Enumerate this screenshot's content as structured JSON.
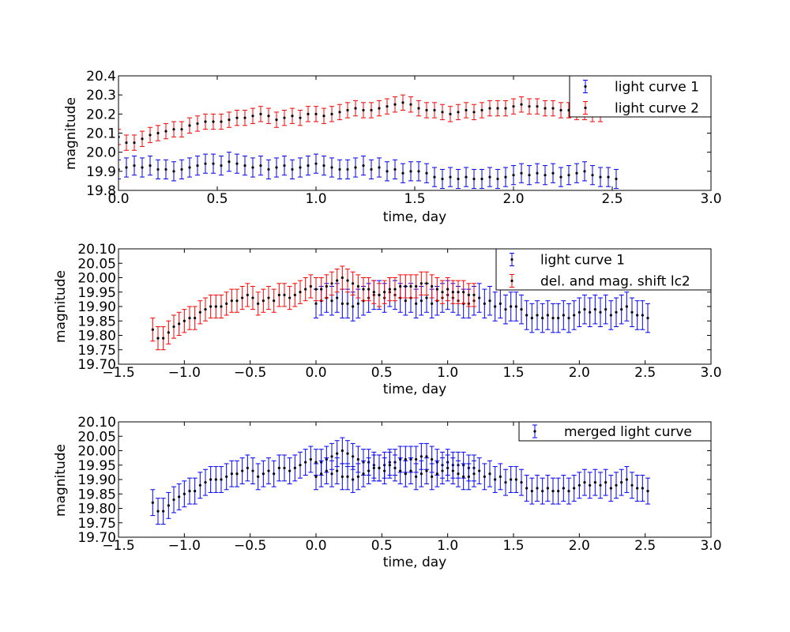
{
  "chart_data": [
    {
      "type": "scatter",
      "xlabel": "time, day",
      "ylabel": "magnitude",
      "xlim": [
        0.0,
        3.0
      ],
      "ylim": [
        19.8,
        20.4
      ],
      "xticks": [
        "0.0",
        "0.5",
        "1.0",
        "1.5",
        "2.0",
        "2.5",
        "3.0"
      ],
      "yticks": [
        "19.8",
        "19.9",
        "20.0",
        "20.1",
        "20.2",
        "20.3",
        "20.4"
      ],
      "legend_position": "top-right",
      "series": [
        {
          "name": "light curve 1",
          "color": "#0000ff",
          "error": 0.05,
          "x": [
            0.0,
            0.04,
            0.08,
            0.12,
            0.16,
            0.2,
            0.24,
            0.28,
            0.32,
            0.36,
            0.4,
            0.44,
            0.48,
            0.52,
            0.56,
            0.6,
            0.64,
            0.68,
            0.72,
            0.76,
            0.8,
            0.84,
            0.88,
            0.92,
            0.96,
            1.0,
            1.04,
            1.08,
            1.12,
            1.16,
            1.2,
            1.24,
            1.28,
            1.32,
            1.36,
            1.4,
            1.44,
            1.48,
            1.52,
            1.56,
            1.6,
            1.64,
            1.68,
            1.72,
            1.76,
            1.8,
            1.84,
            1.88,
            1.92,
            1.96,
            2.0,
            2.04,
            2.08,
            2.12,
            2.16,
            2.2,
            2.24,
            2.28,
            2.32,
            2.36,
            2.4,
            2.44,
            2.48,
            2.52
          ],
          "y": [
            19.91,
            19.92,
            19.93,
            19.92,
            19.93,
            19.91,
            19.91,
            19.9,
            19.91,
            19.92,
            19.93,
            19.94,
            19.94,
            19.93,
            19.95,
            19.94,
            19.93,
            19.92,
            19.93,
            19.91,
            19.92,
            19.93,
            19.91,
            19.92,
            19.93,
            19.94,
            19.93,
            19.92,
            19.91,
            19.91,
            19.92,
            19.93,
            19.91,
            19.92,
            19.9,
            19.91,
            19.89,
            19.9,
            19.9,
            19.89,
            19.87,
            19.86,
            19.87,
            19.86,
            19.87,
            19.86,
            19.86,
            19.87,
            19.86,
            19.87,
            19.88,
            19.89,
            19.88,
            19.89,
            19.88,
            19.89,
            19.87,
            19.88,
            19.89,
            19.9,
            19.88,
            19.87,
            19.87,
            19.86
          ]
        },
        {
          "name": "light curve 2",
          "color": "#ff0000",
          "error": 0.04,
          "x": [
            0.0,
            0.04,
            0.08,
            0.12,
            0.16,
            0.2,
            0.24,
            0.28,
            0.32,
            0.36,
            0.4,
            0.44,
            0.48,
            0.52,
            0.56,
            0.6,
            0.64,
            0.68,
            0.72,
            0.76,
            0.8,
            0.84,
            0.88,
            0.92,
            0.96,
            1.0,
            1.04,
            1.08,
            1.12,
            1.16,
            1.2,
            1.24,
            1.28,
            1.32,
            1.36,
            1.4,
            1.44,
            1.48,
            1.52,
            1.56,
            1.6,
            1.64,
            1.68,
            1.72,
            1.76,
            1.8,
            1.84,
            1.88,
            1.92,
            1.96,
            2.0,
            2.04,
            2.08,
            2.12,
            2.16,
            2.2,
            2.24,
            2.28,
            2.32,
            2.36,
            2.4,
            2.44
          ],
          "y": [
            20.08,
            20.05,
            20.05,
            20.07,
            20.09,
            20.1,
            20.11,
            20.12,
            20.12,
            20.14,
            20.15,
            20.16,
            20.16,
            20.16,
            20.17,
            20.18,
            20.18,
            20.19,
            20.2,
            20.19,
            20.17,
            20.18,
            20.19,
            20.18,
            20.2,
            20.2,
            20.19,
            20.2,
            20.21,
            20.22,
            20.23,
            20.22,
            20.22,
            20.23,
            20.24,
            20.25,
            20.26,
            20.25,
            20.23,
            20.22,
            20.22,
            20.21,
            20.2,
            20.21,
            20.22,
            20.21,
            20.22,
            20.23,
            20.23,
            20.23,
            20.24,
            20.25,
            20.24,
            20.24,
            20.23,
            20.23,
            20.22,
            20.22,
            20.21,
            20.21,
            20.2,
            20.2
          ]
        }
      ]
    },
    {
      "type": "scatter",
      "xlabel": "time, day",
      "ylabel": "magnitude",
      "xlim": [
        -1.5,
        3.0
      ],
      "ylim": [
        19.7,
        20.1
      ],
      "xticks": [
        "−1.5",
        "−1.0",
        "−0.5",
        "0.0",
        "0.5",
        "1.0",
        "1.5",
        "2.0",
        "2.5",
        "3.0"
      ],
      "yticks": [
        "19.70",
        "19.75",
        "19.80",
        "19.85",
        "19.90",
        "19.95",
        "20.00",
        "20.05",
        "20.10"
      ],
      "legend_position": "top-right",
      "series": [
        {
          "name": "light curve 1",
          "color": "#0000ff",
          "error": 0.05,
          "x": [
            0.0,
            0.04,
            0.08,
            0.12,
            0.16,
            0.2,
            0.24,
            0.28,
            0.32,
            0.36,
            0.4,
            0.44,
            0.48,
            0.52,
            0.56,
            0.6,
            0.64,
            0.68,
            0.72,
            0.76,
            0.8,
            0.84,
            0.88,
            0.92,
            0.96,
            1.0,
            1.04,
            1.08,
            1.12,
            1.16,
            1.2,
            1.24,
            1.28,
            1.32,
            1.36,
            1.4,
            1.44,
            1.48,
            1.52,
            1.56,
            1.6,
            1.64,
            1.68,
            1.72,
            1.76,
            1.8,
            1.84,
            1.88,
            1.92,
            1.96,
            2.0,
            2.04,
            2.08,
            2.12,
            2.16,
            2.2,
            2.24,
            2.28,
            2.32,
            2.36,
            2.4,
            2.44,
            2.48,
            2.52
          ],
          "y": [
            19.91,
            19.92,
            19.93,
            19.92,
            19.93,
            19.91,
            19.91,
            19.9,
            19.91,
            19.92,
            19.93,
            19.94,
            19.94,
            19.93,
            19.95,
            19.94,
            19.93,
            19.92,
            19.93,
            19.91,
            19.92,
            19.93,
            19.91,
            19.92,
            19.93,
            19.94,
            19.93,
            19.92,
            19.91,
            19.91,
            19.92,
            19.93,
            19.91,
            19.92,
            19.9,
            19.91,
            19.89,
            19.9,
            19.9,
            19.89,
            19.87,
            19.86,
            19.87,
            19.86,
            19.87,
            19.86,
            19.86,
            19.87,
            19.86,
            19.87,
            19.88,
            19.89,
            19.88,
            19.89,
            19.88,
            19.89,
            19.87,
            19.88,
            19.89,
            19.9,
            19.88,
            19.87,
            19.87,
            19.86
          ]
        },
        {
          "name": "del. and mag. shift lc2",
          "color": "#ff0000",
          "error": 0.04,
          "x": [
            -1.24,
            -1.2,
            -1.16,
            -1.12,
            -1.08,
            -1.04,
            -1.0,
            -0.96,
            -0.92,
            -0.88,
            -0.84,
            -0.8,
            -0.76,
            -0.72,
            -0.68,
            -0.64,
            -0.6,
            -0.56,
            -0.52,
            -0.48,
            -0.44,
            -0.4,
            -0.36,
            -0.32,
            -0.28,
            -0.24,
            -0.2,
            -0.16,
            -0.12,
            -0.08,
            -0.04,
            0.0,
            0.04,
            0.08,
            0.12,
            0.16,
            0.2,
            0.24,
            0.28,
            0.32,
            0.36,
            0.4,
            0.44,
            0.48,
            0.52,
            0.56,
            0.6,
            0.64,
            0.68,
            0.72,
            0.76,
            0.8,
            0.84,
            0.88,
            0.92,
            0.96,
            1.0,
            1.04,
            1.08,
            1.12,
            1.16,
            1.2
          ],
          "y": [
            19.82,
            19.79,
            19.79,
            19.81,
            19.83,
            19.84,
            19.85,
            19.86,
            19.86,
            19.88,
            19.89,
            19.9,
            19.9,
            19.9,
            19.91,
            19.92,
            19.92,
            19.93,
            19.94,
            19.93,
            19.91,
            19.92,
            19.93,
            19.92,
            19.94,
            19.94,
            19.93,
            19.94,
            19.95,
            19.96,
            19.97,
            19.96,
            19.96,
            19.97,
            19.98,
            19.99,
            20.0,
            19.99,
            19.98,
            19.97,
            19.96,
            19.96,
            19.95,
            19.94,
            19.95,
            19.96,
            19.96,
            19.97,
            19.97,
            19.97,
            19.97,
            19.98,
            19.98,
            19.97,
            19.96,
            19.95,
            19.96,
            19.95,
            19.95,
            19.95,
            19.94,
            19.94
          ]
        }
      ]
    },
    {
      "type": "scatter",
      "xlabel": "time, day",
      "ylabel": "magnitude",
      "xlim": [
        -1.5,
        3.0
      ],
      "ylim": [
        19.7,
        20.1
      ],
      "xticks": [
        "−1.5",
        "−1.0",
        "−0.5",
        "0.0",
        "0.5",
        "1.0",
        "1.5",
        "2.0",
        "2.5",
        "3.0"
      ],
      "yticks": [
        "19.70",
        "19.75",
        "19.80",
        "19.85",
        "19.90",
        "19.95",
        "20.00",
        "20.05",
        "20.10"
      ],
      "legend_position": "top-right",
      "series": [
        {
          "name": "merged light curve",
          "color": "#0000ff",
          "error": 0.045,
          "x": [
            -1.24,
            -1.2,
            -1.16,
            -1.12,
            -1.08,
            -1.04,
            -1.0,
            -0.96,
            -0.92,
            -0.88,
            -0.84,
            -0.8,
            -0.76,
            -0.72,
            -0.68,
            -0.64,
            -0.6,
            -0.56,
            -0.52,
            -0.48,
            -0.44,
            -0.4,
            -0.36,
            -0.32,
            -0.28,
            -0.24,
            -0.2,
            -0.16,
            -0.12,
            -0.08,
            -0.04,
            0.0,
            0.0,
            0.04,
            0.04,
            0.08,
            0.08,
            0.12,
            0.12,
            0.16,
            0.16,
            0.2,
            0.2,
            0.24,
            0.24,
            0.28,
            0.28,
            0.32,
            0.32,
            0.36,
            0.36,
            0.4,
            0.4,
            0.44,
            0.44,
            0.48,
            0.48,
            0.52,
            0.52,
            0.56,
            0.56,
            0.6,
            0.6,
            0.64,
            0.64,
            0.68,
            0.68,
            0.72,
            0.72,
            0.76,
            0.76,
            0.8,
            0.8,
            0.84,
            0.84,
            0.88,
            0.88,
            0.92,
            0.92,
            0.96,
            0.96,
            1.0,
            1.0,
            1.04,
            1.04,
            1.08,
            1.08,
            1.12,
            1.12,
            1.16,
            1.16,
            1.2,
            1.2,
            1.24,
            1.28,
            1.32,
            1.36,
            1.4,
            1.44,
            1.48,
            1.52,
            1.56,
            1.6,
            1.64,
            1.68,
            1.72,
            1.76,
            1.8,
            1.84,
            1.88,
            1.92,
            1.96,
            2.0,
            2.04,
            2.08,
            2.12,
            2.16,
            2.2,
            2.24,
            2.28,
            2.32,
            2.36,
            2.4,
            2.44,
            2.48,
            2.52
          ],
          "y": [
            19.82,
            19.79,
            19.79,
            19.81,
            19.83,
            19.84,
            19.85,
            19.86,
            19.86,
            19.88,
            19.89,
            19.9,
            19.9,
            19.9,
            19.91,
            19.92,
            19.92,
            19.93,
            19.94,
            19.93,
            19.91,
            19.92,
            19.93,
            19.92,
            19.94,
            19.94,
            19.93,
            19.94,
            19.95,
            19.96,
            19.97,
            19.96,
            19.91,
            19.96,
            19.92,
            19.97,
            19.93,
            19.98,
            19.92,
            19.99,
            19.93,
            20.0,
            19.91,
            19.99,
            19.91,
            19.98,
            19.9,
            19.97,
            19.91,
            19.96,
            19.92,
            19.96,
            19.93,
            19.95,
            19.94,
            19.94,
            19.94,
            19.95,
            19.93,
            19.96,
            19.95,
            19.96,
            19.94,
            19.97,
            19.93,
            19.97,
            19.92,
            19.97,
            19.93,
            19.97,
            19.91,
            19.98,
            19.92,
            19.98,
            19.93,
            19.97,
            19.91,
            19.96,
            19.92,
            19.95,
            19.93,
            19.96,
            19.94,
            19.95,
            19.93,
            19.95,
            19.92,
            19.95,
            19.91,
            19.94,
            19.91,
            19.94,
            19.92,
            19.93,
            19.91,
            19.92,
            19.9,
            19.91,
            19.89,
            19.9,
            19.9,
            19.89,
            19.87,
            19.86,
            19.87,
            19.86,
            19.87,
            19.86,
            19.86,
            19.87,
            19.86,
            19.87,
            19.88,
            19.89,
            19.88,
            19.89,
            19.88,
            19.89,
            19.87,
            19.88,
            19.89,
            19.9,
            19.88,
            19.87,
            19.87,
            19.86
          ]
        }
      ]
    }
  ]
}
